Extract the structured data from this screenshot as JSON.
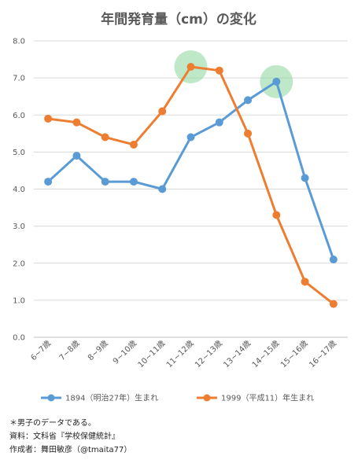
{
  "chart_data": {
    "type": "line",
    "title": "年間発育量（cm）の変化",
    "categories": [
      "6~7歳",
      "7~8歳",
      "8~9歳",
      "9~10歳",
      "10~11歳",
      "11~12歳",
      "12~13歳",
      "13~14歳",
      "14~15歳",
      "15~16歳",
      "16~17歳"
    ],
    "ylim": [
      0,
      8
    ],
    "yticks": [
      "0.0",
      "1.0",
      "2.0",
      "3.0",
      "4.0",
      "5.0",
      "6.0",
      "7.0",
      "8.0"
    ],
    "grid": true,
    "legend_position": "bottom",
    "series": [
      {
        "name": "1894（明治27年）生まれ",
        "color": "#5B9BD5",
        "values": [
          4.2,
          4.9,
          4.2,
          4.2,
          4.0,
          5.4,
          5.8,
          6.4,
          6.9,
          4.3,
          2.1
        ],
        "peak_index": 8
      },
      {
        "name": "1999（平成11）年生まれ",
        "color": "#ED7D31",
        "values": [
          5.9,
          5.8,
          5.4,
          5.2,
          6.1,
          7.3,
          7.2,
          5.5,
          3.3,
          1.5,
          0.9
        ],
        "peak_index": 5
      }
    ],
    "highlight_color": "#8BD69B"
  },
  "notes": {
    "line1": "＊男子のデータである。",
    "line2": "資料：文科省『学校保健統計』",
    "line3": "作成者：舞田敏彦（@tmaita77）"
  }
}
